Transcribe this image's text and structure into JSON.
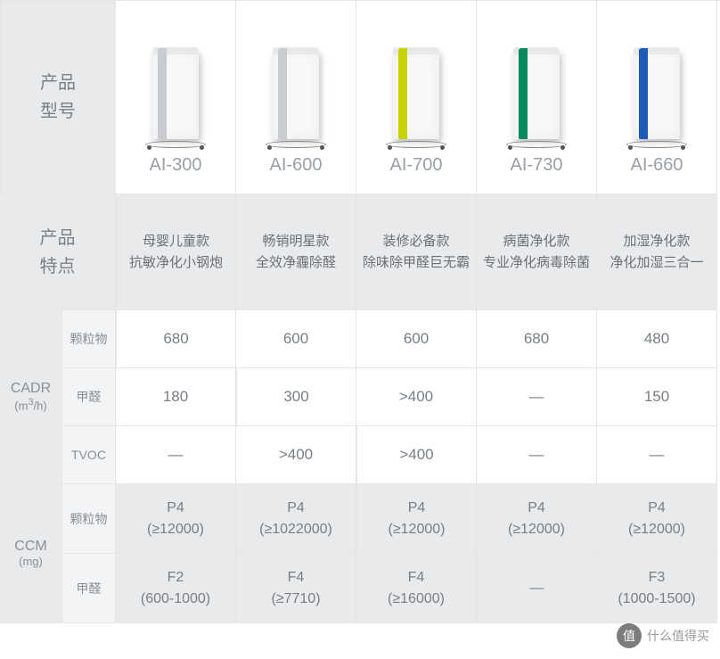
{
  "headers": {
    "model": "产品\n型号",
    "feature": "产品\n特点",
    "cadr_label": "CADR",
    "cadr_unit": "(m³/h)",
    "ccm_label": "CCM",
    "ccm_unit": "(mg)",
    "particle": "颗粒物",
    "formaldehyde": "甲醛",
    "tvoc": "TVOC"
  },
  "models": [
    {
      "name": "AI-300",
      "accent": "#c8ccd1"
    },
    {
      "name": "AI-600",
      "accent": "#c8ccd1"
    },
    {
      "name": "AI-700",
      "accent": "#c5d400"
    },
    {
      "name": "AI-730",
      "accent": "#0a8a5f"
    },
    {
      "name": "AI-660",
      "accent": "#1e5bb8"
    }
  ],
  "features": [
    {
      "line1": "母婴儿童款",
      "line2": "抗敏净化小钢炮"
    },
    {
      "line1": "畅销明星款",
      "line2": "全效净霾除醛"
    },
    {
      "line1": "装修必备款",
      "line2": "除味除甲醛巨无霸"
    },
    {
      "line1": "病菌净化款",
      "line2": "专业净化病毒除菌"
    },
    {
      "line1": "加湿净化款",
      "line2": "净化加湿三合一"
    }
  ],
  "cadr_particle": [
    "680",
    "600",
    "600",
    "680",
    "480"
  ],
  "cadr_hcho": [
    "180",
    "300",
    ">400",
    "—",
    "150"
  ],
  "cadr_tvoc": [
    "—",
    ">400",
    ">400",
    "—",
    "—"
  ],
  "ccm_particle": [
    {
      "line1": "P4",
      "line2": "(≥12000)"
    },
    {
      "line1": "P4",
      "line2": "(≥1022000)"
    },
    {
      "line1": "P4",
      "line2": "(≥12000)"
    },
    {
      "line1": "P4",
      "line2": "(≥12000)"
    },
    {
      "line1": "P4",
      "line2": "(≥12000)"
    }
  ],
  "ccm_hcho": [
    {
      "line1": "F2",
      "line2": "(600-1000)"
    },
    {
      "line1": "F4",
      "line2": "(≥7710)"
    },
    {
      "line1": "F4",
      "line2": "(≥16000)"
    },
    {
      "line1": "—",
      "line2": ""
    },
    {
      "line1": "F3",
      "line2": "(1000-1500)"
    }
  ],
  "watermark": {
    "badge": "值",
    "text": "什么值得买"
  }
}
